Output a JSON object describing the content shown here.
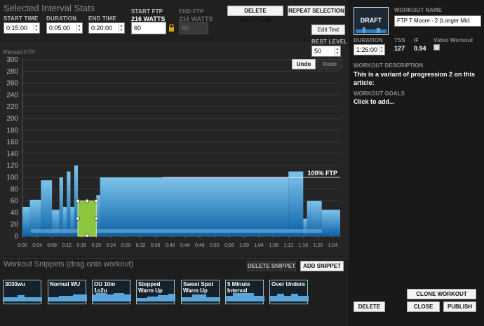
{
  "stats": {
    "title": "Selected Interval Stats",
    "start_time_label": "START TIME",
    "start_time": "0:15:00",
    "duration_label": "DURATION",
    "duration": "0:05:00",
    "end_time_label": "END TIME",
    "end_time": "0:20:00",
    "start_ftp_label": "START FTP",
    "start_ftp_watts": "216 WATTS",
    "start_ftp_value": "60",
    "end_ftp_label": "END FTP",
    "end_ftp_watts": "216 WATTS",
    "end_ftp_value": "60"
  },
  "toolbar": {
    "delete_selection": "DELETE SELECTION",
    "repeat_selection": "REPEAT SELECTION",
    "edit_text": "Edit Text",
    "rest_level_label": "REST LEVEL",
    "rest_level_value": "50",
    "undo": "Undo",
    "redo": "Redo"
  },
  "chart_data": {
    "type": "area",
    "ylabel": "Percent FTP",
    "ylim": [
      0,
      300
    ],
    "xlim": [
      0,
      86
    ],
    "yticks": [
      "0",
      "20",
      "40",
      "60",
      "80",
      "100",
      "120",
      "140",
      "160",
      "180",
      "200",
      "220",
      "240",
      "260",
      "280",
      "300"
    ],
    "xticks": [
      "0:00",
      "0:04",
      "0:08",
      "0:12",
      "0:16",
      "0:20",
      "0:24",
      "0:28",
      "0:32",
      "0:36",
      "0:40",
      "0:44",
      "0:48",
      "0:52",
      "0:56",
      "1:00",
      "1:04",
      "1:08",
      "1:12",
      "1:16",
      "1:20",
      "1:24"
    ],
    "annotation": "100% FTP",
    "blocks": [
      {
        "start": 0,
        "end": 2,
        "level": 50
      },
      {
        "start": 2,
        "end": 5,
        "level": 62
      },
      {
        "start": 5,
        "end": 8,
        "level": 95
      },
      {
        "start": 8,
        "end": 10,
        "level": 45
      },
      {
        "start": 10,
        "end": 11,
        "level": 100
      },
      {
        "start": 11,
        "end": 12,
        "level": 50
      },
      {
        "start": 12,
        "end": 13,
        "level": 110
      },
      {
        "start": 13,
        "end": 14,
        "level": 50
      },
      {
        "start": 14,
        "end": 15,
        "level": 120
      },
      {
        "start": 15,
        "end": 20,
        "level": 60
      },
      {
        "start": 20,
        "end": 21,
        "level": 70
      },
      {
        "start": 21,
        "end": 72,
        "level": 100
      },
      {
        "start": 72,
        "end": 76,
        "level": 110
      },
      {
        "start": 76,
        "end": 77,
        "level": 30
      },
      {
        "start": 77,
        "end": 78,
        "level": 60
      },
      {
        "start": 78,
        "end": 81,
        "level": 60
      },
      {
        "start": 81,
        "end": 86,
        "level": 45
      }
    ],
    "selection": {
      "start": 15,
      "end": 20,
      "level": 60
    }
  },
  "snippets": {
    "title": "Workout Snippets (drag onto workout)",
    "delete_snippet": "DELETE SNIPPET",
    "add_snippet": "ADD SNIPPET",
    "items": [
      {
        "label": "3030wu"
      },
      {
        "label": "Normal WU"
      },
      {
        "label": "OU 10m 1o2u"
      },
      {
        "label": "Stepped Warm Up"
      },
      {
        "label": "Sweet Spot Warm Up"
      },
      {
        "label": "5 Minute Interval"
      },
      {
        "label": "Over Unders"
      }
    ]
  },
  "workout": {
    "draft": "DRAFT",
    "name_label": "WORKOUT NAME",
    "name_value": "FTP T Moore -  2  (Longer Mid",
    "duration_label": "DURATION",
    "duration_value": "1:26:00",
    "tss_label": "TSS",
    "tss_value": "127",
    "if_label": "IF",
    "if_value": "0.94",
    "video_label": "Video Workout",
    "description_label": "WORKOUT DESCRIPTION",
    "description": "This is a variant of progression 2 on this article:",
    "goals_label": "WORKOUT GOALS",
    "goals": "Click to add...",
    "clone": "CLONE WORKOUT",
    "delete": "DELETE",
    "close": "CLOSE",
    "publish": "PUBLISH"
  },
  "colors": {
    "bar_top": "#7fc3ea",
    "bar_bottom": "#0a62a8",
    "selection": "#8cc63f"
  }
}
